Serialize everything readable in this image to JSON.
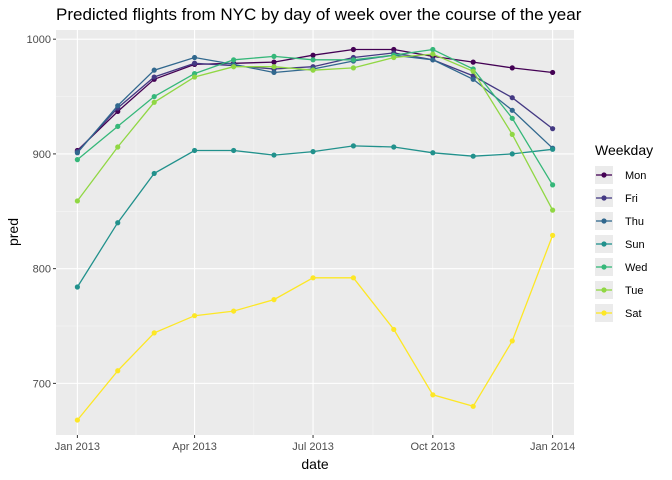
{
  "chart_data": {
    "type": "line",
    "title": "Predicted flights from NYC by day of week over the course of the year",
    "xlabel": "date",
    "ylabel": "pred",
    "x_tick_labels": [
      "Jan 2013",
      "Apr 2013",
      "Jul 2013",
      "Oct 2013",
      "Jan 2014"
    ],
    "y_tick_labels": [
      "700",
      "800",
      "900",
      "1000"
    ],
    "xlim": [
      "2013-01-01",
      "2014-01-01"
    ],
    "ylim": [
      655,
      1008
    ],
    "grid": true,
    "legend_position": "right",
    "legend_title": "Weekday",
    "x": [
      "2013-01-01",
      "2013-02-01",
      "2013-03-01",
      "2013-04-01",
      "2013-05-01",
      "2013-06-01",
      "2013-07-01",
      "2013-08-01",
      "2013-09-01",
      "2013-10-01",
      "2013-11-01",
      "2013-12-01",
      "2014-01-01"
    ],
    "series": [
      {
        "name": "Mon",
        "color": "#440154",
        "values": [
          903,
          937,
          965,
          978,
          979,
          980,
          986,
          991,
          991,
          985,
          980,
          975,
          971
        ]
      },
      {
        "name": "Fri",
        "color": "#443983",
        "values": [
          902,
          940,
          967,
          979,
          977,
          974,
          976,
          984,
          988,
          982,
          968,
          949,
          922
        ]
      },
      {
        "name": "Thu",
        "color": "#31688e",
        "values": [
          901,
          942,
          973,
          984,
          978,
          971,
          974,
          981,
          986,
          982,
          965,
          938,
          905
        ]
      },
      {
        "name": "Sun",
        "color": "#21918c",
        "values": [
          784,
          840,
          883,
          903,
          903,
          899,
          902,
          907,
          906,
          901,
          898,
          900,
          904
        ]
      },
      {
        "name": "Wed",
        "color": "#35b779",
        "values": [
          895,
          924,
          950,
          970,
          982,
          985,
          982,
          982,
          986,
          991,
          974,
          931,
          873
        ]
      },
      {
        "name": "Tue",
        "color": "#90d743",
        "values": [
          859,
          906,
          945,
          967,
          976,
          976,
          973,
          975,
          984,
          987,
          972,
          917,
          851
        ]
      },
      {
        "name": "Sat",
        "color": "#fde725",
        "values": [
          668,
          711,
          744,
          759,
          763,
          773,
          792,
          792,
          747,
          690,
          680,
          737,
          829
        ]
      }
    ]
  }
}
